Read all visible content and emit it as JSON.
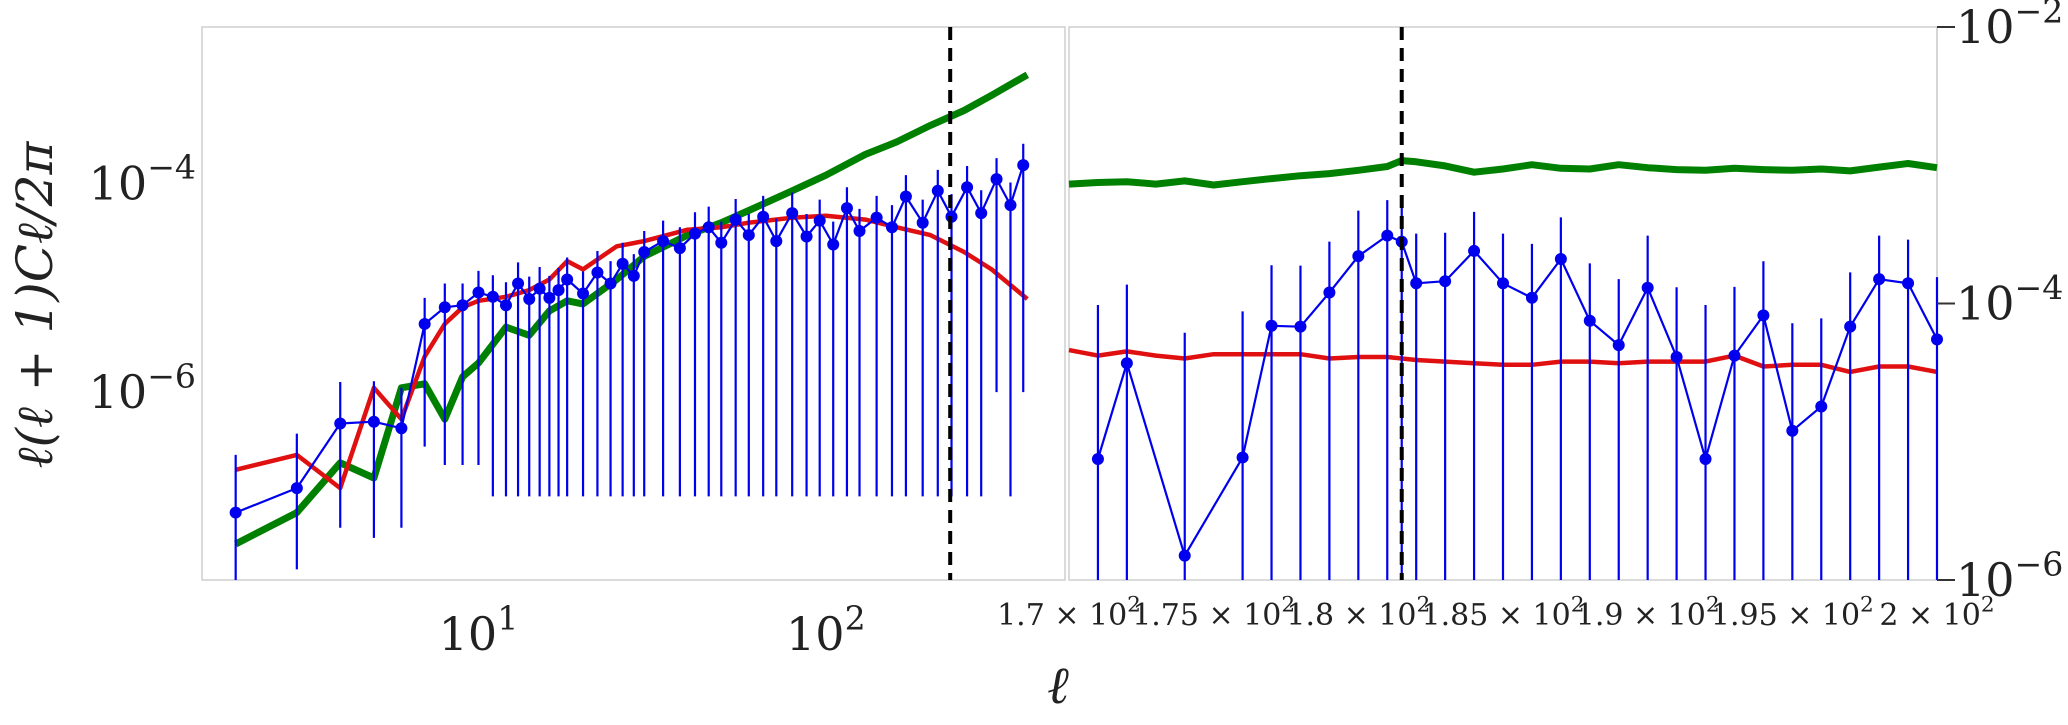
{
  "chart_data": [
    {
      "type": "line",
      "panel": "left",
      "x_scale": "log",
      "y_scale": "log",
      "xlim": [
        1.6,
        400
      ],
      "ylim": [
        1.58e-08,
        0.00316
      ],
      "grid": false,
      "xlabel": "ℓ",
      "ylabel": "ℓ(ℓ + 1)Cℓ/2π",
      "x_ticks": [
        {
          "value": 10,
          "base": "10",
          "exp": "1"
        },
        {
          "value": 100,
          "base": "10",
          "exp": "2"
        }
      ],
      "y_ticks": [
        {
          "value": 1e-06,
          "base": "10",
          "exp": "−6"
        },
        {
          "value": 0.0001,
          "base": "10",
          "exp": "−4"
        }
      ],
      "vline": {
        "x": 228,
        "style": "dashed",
        "color": "#000000"
      },
      "series": [
        {
          "color": "#008000",
          "x": [
            2,
            3,
            4,
            5,
            6,
            7,
            8,
            9,
            10,
            12,
            14,
            16,
            18,
            20,
            25,
            30,
            40,
            50,
            60,
            80,
            100,
            130,
            160,
            200,
            250,
            300,
            380
          ],
          "values": [
            3.5e-08,
            7e-08,
            2.1e-07,
            1.5e-07,
            1.1e-06,
            1.2e-06,
            5.5e-07,
            1.4e-06,
            1.9e-06,
            4.2e-06,
            3.5e-06,
            6e-06,
            7.5e-06,
            7e-06,
            1.2e-05,
            2e-05,
            3.2e-05,
            4.2e-05,
            5.5e-05,
            8.5e-05,
            0.00012,
            0.00019,
            0.00025,
            0.00036,
            0.0005,
            0.0007,
            0.0011
          ]
        },
        {
          "color": "#e01010",
          "x": [
            2,
            3,
            4,
            5,
            6,
            7,
            8,
            9,
            10,
            12,
            14,
            16,
            18,
            20,
            25,
            30,
            40,
            50,
            60,
            80,
            100,
            130,
            160,
            200,
            250,
            300,
            380
          ],
          "values": [
            1.8e-07,
            2.5e-07,
            1.2e-07,
            1.1e-06,
            5.5e-07,
            2.2e-06,
            4.5e-06,
            6.5e-06,
            7.5e-06,
            8.2e-06,
            9.5e-06,
            1.2e-05,
            1.8e-05,
            1.5e-05,
            2.5e-05,
            2.8e-05,
            3.6e-05,
            3.8e-05,
            4.2e-05,
            4.7e-05,
            4.9e-05,
            4.5e-05,
            3.8e-05,
            3.2e-05,
            2.2e-05,
            1.5e-05,
            7.8e-06
          ]
        },
        {
          "color": "#0000ee",
          "markers": true,
          "x": [
            2,
            3,
            4,
            5,
            6,
            7,
            8,
            9,
            10,
            11,
            12,
            13,
            14,
            15,
            16,
            17,
            18,
            20,
            22,
            24,
            26,
            28,
            30,
            34,
            38,
            42,
            46,
            50,
            55,
            60,
            66,
            72,
            80,
            88,
            96,
            105,
            115,
            125,
            140,
            155,
            170,
            190,
            210,
            230,
            255,
            280,
            310,
            340,
            370
          ],
          "values": [
            7e-08,
            1.2e-07,
            5e-07,
            5.2e-07,
            4.5e-07,
            4.5e-06,
            6.5e-06,
            6.8e-06,
            9e-06,
            8.2e-06,
            6.8e-06,
            1.1e-05,
            7.8e-06,
            9.8e-06,
            8e-06,
            9.5e-06,
            1.2e-05,
            8.8e-06,
            1.4e-05,
            1.1e-05,
            1.7e-05,
            1.3e-05,
            2.2e-05,
            2.8e-05,
            2.4e-05,
            3.3e-05,
            3.8e-05,
            2.7e-05,
            4.5e-05,
            3.2e-05,
            4.8e-05,
            2.8e-05,
            5.2e-05,
            3.1e-05,
            4.4e-05,
            2.6e-05,
            5.8e-05,
            3.5e-05,
            4.7e-05,
            3.8e-05,
            7.5e-05,
            4.2e-05,
            8.5e-05,
            4.8e-05,
            9.2e-05,
            5.2e-05,
            0.00011,
            6.2e-05,
            0.00015
          ],
          "yerr_lo": [
            6e-08,
            1e-07,
            4.5e-07,
            4.8e-07,
            4e-07,
            4.2e-06,
            6.3e-06,
            6.6e-06,
            8.8e-06,
            8.1e-06,
            6.7e-06,
            1.09e-05,
            7.7e-06,
            9.7e-06,
            7.9e-06,
            9.4e-06,
            1.19e-05,
            8.7e-06,
            1.39e-05,
            1.09e-05,
            1.69e-05,
            1.29e-05,
            2.19e-05,
            2.79e-05,
            2.39e-05,
            3.29e-05,
            3.79e-05,
            2.69e-05,
            4.49e-05,
            3.19e-05,
            4.79e-05,
            2.79e-05,
            5.19e-05,
            3.09e-05,
            4.39e-05,
            2.59e-05,
            5.79e-05,
            3.49e-05,
            4.69e-05,
            3.79e-05,
            7.49e-05,
            4.19e-05,
            8.49e-05,
            4.79e-05,
            9.19e-05,
            5.19e-05,
            0.000109,
            6.19e-05,
            0.000149
          ],
          "yerr_hi": [
            1.8e-07,
            2.8e-07,
            7.5e-07,
            7.5e-07,
            6.5e-07,
            3.5e-06,
            4.5e-06,
            4.2e-06,
            5.5e-06,
            5e-06,
            4.5e-06,
            6.5e-06,
            5e-06,
            6e-06,
            5e-06,
            6e-06,
            7.5e-06,
            5.5e-06,
            8.5e-06,
            7e-06,
            1e-05,
            8e-06,
            1.3e-05,
            1.6e-05,
            1.4e-05,
            2e-05,
            2.2e-05,
            1.6e-05,
            2.6e-05,
            1.9e-05,
            2.8e-05,
            1.8e-05,
            3e-05,
            2e-05,
            2.6e-05,
            1.7e-05,
            3.4e-05,
            2.2e-05,
            2.9e-05,
            2.4e-05,
            4.5e-05,
            2.8e-05,
            5e-05,
            3.1e-05,
            5.5e-05,
            3.4e-05,
            6.5e-05,
            4e-05,
            9e-05
          ]
        }
      ]
    },
    {
      "type": "line",
      "panel": "right",
      "x_scale": "linear",
      "y_scale": "log",
      "xlim": [
        170,
        200
      ],
      "ylim": [
        1e-06,
        0.01
      ],
      "y_axis_side": "right",
      "grid": false,
      "x_ticks": [
        {
          "value": 170,
          "label": "1.7 × 10",
          "exp": "2"
        },
        {
          "value": 175,
          "label": "1.75 × 10",
          "exp": "2"
        },
        {
          "value": 180,
          "label": "1.8 × 10",
          "exp": "2"
        },
        {
          "value": 185,
          "label": "1.85 × 10",
          "exp": "2"
        },
        {
          "value": 190,
          "label": "1.9 × 10",
          "exp": "2"
        },
        {
          "value": 195,
          "label": "1.95 × 10",
          "exp": "2"
        },
        {
          "value": 200,
          "label": "2 × 10",
          "exp": "2"
        }
      ],
      "y_ticks": [
        {
          "value": 1e-06,
          "base": "10",
          "exp": "−6"
        },
        {
          "value": 0.0001,
          "base": "10",
          "exp": "−4"
        },
        {
          "value": 0.01,
          "base": "10",
          "exp": "−2"
        }
      ],
      "vline": {
        "x": 181.5,
        "style": "dashed",
        "color": "#000000"
      },
      "series": [
        {
          "color": "#008000",
          "x": [
            170,
            171,
            172,
            173,
            174,
            175,
            176,
            177,
            178,
            179,
            180,
            181,
            181.5,
            182,
            183,
            184,
            185,
            186,
            187,
            188,
            189,
            190,
            191,
            192,
            193,
            194,
            195,
            196,
            197,
            198,
            199,
            200
          ],
          "values": [
            0.00073,
            0.00075,
            0.00076,
            0.00073,
            0.00077,
            0.00072,
            0.00076,
            0.0008,
            0.00084,
            0.00087,
            0.00092,
            0.00098,
            0.00108,
            0.00106,
            0.00099,
            0.00089,
            0.00094,
            0.00101,
            0.00095,
            0.00094,
            0.00101,
            0.00096,
            0.00093,
            0.00092,
            0.00095,
            0.00093,
            0.00092,
            0.00094,
            0.00091,
            0.00097,
            0.00103,
            0.00096
          ]
        },
        {
          "color": "#e01010",
          "x": [
            170,
            171,
            172,
            173,
            174,
            175,
            176,
            177,
            178,
            179,
            180,
            181,
            182,
            183,
            184,
            185,
            186,
            187,
            188,
            189,
            190,
            191,
            192,
            193,
            194,
            195,
            196,
            197,
            198,
            199,
            200
          ],
          "values": [
            4.6e-05,
            4.2e-05,
            4.5e-05,
            4.2e-05,
            4e-05,
            4.3e-05,
            4.3e-05,
            4.3e-05,
            4.3e-05,
            4e-05,
            4.1e-05,
            4.1e-05,
            3.9e-05,
            3.8e-05,
            3.7e-05,
            3.6e-05,
            3.6e-05,
            3.8e-05,
            3.8e-05,
            3.7e-05,
            3.8e-05,
            3.8e-05,
            3.8e-05,
            4.2e-05,
            3.5e-05,
            3.6e-05,
            3.6e-05,
            3.2e-05,
            3.5e-05,
            3.5e-05,
            3.2e-05
          ]
        },
        {
          "color": "#0000ee",
          "markers": true,
          "x": [
            171,
            172,
            174,
            176,
            177,
            178,
            179,
            180,
            181,
            181.5,
            182,
            183,
            184,
            185,
            186,
            187,
            188,
            189,
            190,
            191,
            192,
            193,
            194,
            195,
            196,
            197,
            198,
            199,
            200
          ],
          "values": [
            7.5e-06,
            3.7e-05,
            1.5e-06,
            7.7e-06,
            6.9e-05,
            6.8e-05,
            0.00012,
            0.00022,
            0.00031,
            0.00028,
            0.00014,
            0.000145,
            0.00024,
            0.00014,
            0.00011,
            0.00021,
            7.5e-05,
            5e-05,
            0.00013,
            4.1e-05,
            7.5e-06,
            4.2e-05,
            8.2e-05,
            1.2e-05,
            1.8e-05,
            6.8e-05,
            0.00015,
            0.00014,
            5.5e-05
          ],
          "yerr_lo": [
            7.3e-06,
            3.6e-05,
            1.5e-06,
            7.6e-06,
            6.8e-05,
            6.7e-05,
            0.000119,
            0.000219,
            0.000309,
            0.000279,
            0.000139,
            0.000144,
            0.000239,
            0.000139,
            0.000109,
            0.000209,
            7.45e-05,
            4.95e-05,
            0.000129,
            4.05e-05,
            7.4e-06,
            4.15e-05,
            8.15e-05,
            1.19e-05,
            1.79e-05,
            6.75e-05,
            0.000149,
            0.000139,
            5.45e-05
          ],
          "yerr_hi": [
            9e-05,
            0.0001,
            6e-05,
            8e-05,
            0.00012,
            0.00012,
            0.00016,
            0.00025,
            0.00025,
            0.00024,
            0.00018,
            0.00018,
            0.00022,
            0.00018,
            0.00016,
            0.00021,
            0.00012,
            0.0001,
            0.00018,
            9e-05,
            9e-05,
            9e-05,
            0.00012,
            6e-05,
            6e-05,
            0.0001,
            0.00016,
            0.00015,
            0.0001
          ]
        }
      ]
    }
  ]
}
